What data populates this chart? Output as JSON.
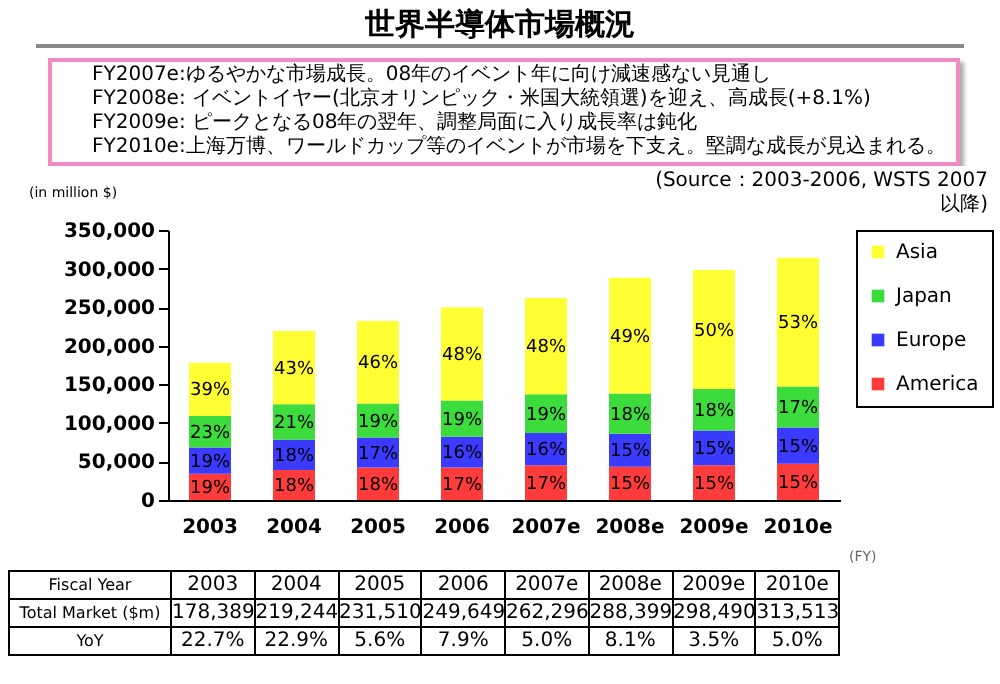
{
  "chart_data": {
    "type": "bar",
    "stacked": true,
    "title": "世界半導体市場概況",
    "ylabel": "(in million $)",
    "xlabel": "(FY)",
    "categories": [
      "2003",
      "2004",
      "2005",
      "2006",
      "2007e",
      "2008e",
      "2009e",
      "2010e"
    ],
    "series": [
      {
        "name": "America",
        "color": "#ff3b3b",
        "values": [
          34000,
          39000,
          42000,
          42000,
          45000,
          43000,
          45000,
          47000
        ]
      },
      {
        "name": "Europe",
        "color": "#3b3bff",
        "values": [
          34000,
          39000,
          39000,
          40000,
          42000,
          43000,
          45000,
          47000
        ]
      },
      {
        "name": "Japan",
        "color": "#3bdc3b",
        "values": [
          41000,
          46000,
          44000,
          47000,
          50000,
          52000,
          54000,
          53000
        ]
      },
      {
        "name": "Asia",
        "color": "#ffff33",
        "values": [
          69000,
          95000,
          107000,
          121000,
          125000,
          150000,
          154000,
          167000
        ]
      }
    ],
    "ylim": [
      0,
      350000
    ],
    "yticks": [
      {
        "value": 0,
        "label": "0"
      },
      {
        "value": 50000,
        "label": "50,000"
      },
      {
        "value": 100000,
        "label": "100,000"
      },
      {
        "value": 150000,
        "label": "150,000"
      },
      {
        "value": 200000,
        "label": "200,000"
      },
      {
        "value": 250000,
        "label": "250,000"
      },
      {
        "value": 300000,
        "label": "300,000"
      },
      {
        "value": 350000,
        "label": "350,000"
      }
    ],
    "legend": "right",
    "grid": false,
    "annotations": [
      "FY2007e:ゆるやかな市場成長。08年のイベント年に向け減速感ない見通し",
      "FY2008e: イベントイヤー(北京オリンピック・米国大統領選)を迎え、高成長(+8.1%)",
      "FY2009e: ピークとなる08年の翌年、調整局面に入り成長率は鈍化",
      "FY2010e:上海万博、ワールドカップ等のイベントが市場を下支え。堅調な成長が見込まれる。",
      "(Source：2003-2006, WSTS 2007以降)",
      "Fiscal Year",
      "Total Market ($m)",
      "178,389",
      "219,244",
      "231,510",
      "249,649",
      "262,296",
      "288,399",
      "298,490",
      "313,513",
      "YoY",
      "22.7%",
      "22.9%",
      "5.6%",
      "7.9%",
      "5.0%",
      "8.1%",
      "3.5%",
      "5.0%",
      "19%",
      "19%",
      "23%",
      "39%",
      "18%",
      "18%",
      "21%",
      "43%",
      "18%",
      "17%",
      "19%",
      "46%",
      "17%",
      "16%",
      "19%",
      "48%",
      "17%",
      "16%",
      "19%",
      "48%",
      "15%",
      "15%",
      "18%",
      "49%",
      "15%",
      "15%",
      "18%",
      "50%",
      "15%",
      "15%",
      "17%",
      "53%"
    ]
  }
}
